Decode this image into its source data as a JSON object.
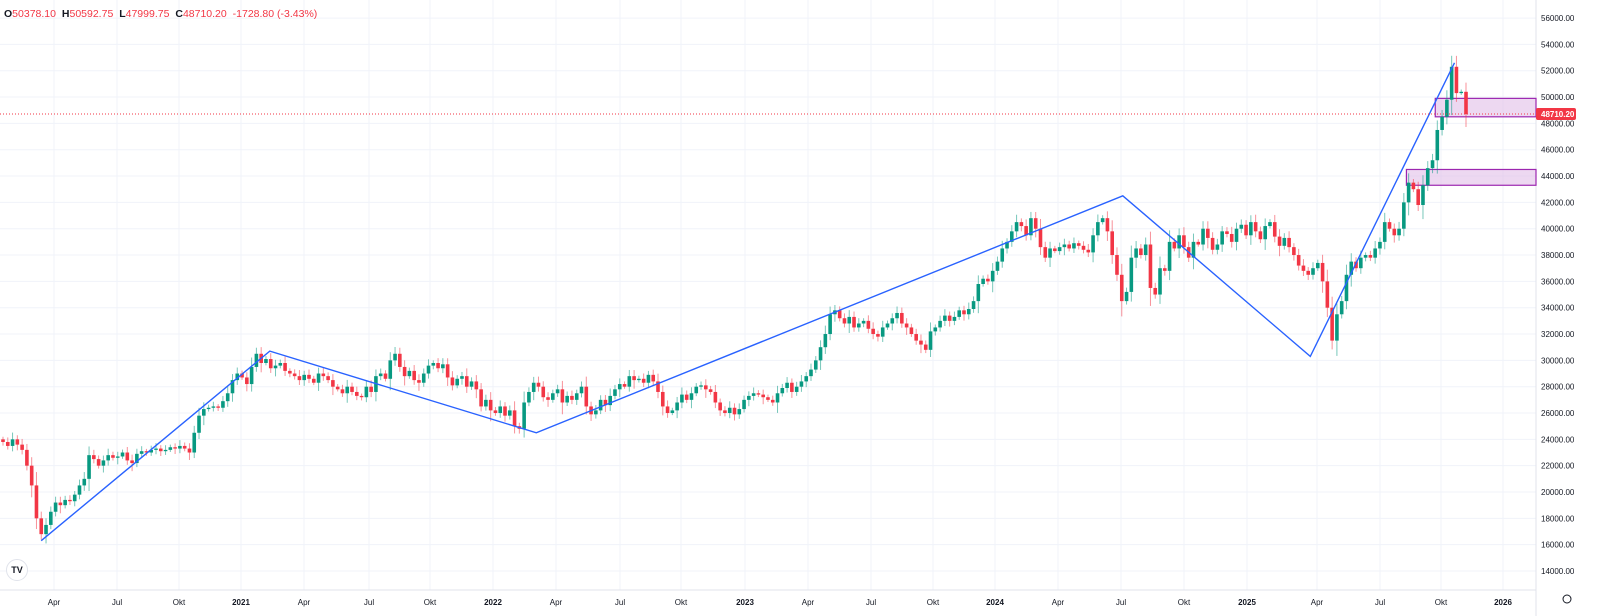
{
  "legend": {
    "o_label": "O",
    "open": "50378.10",
    "h_label": "H",
    "high": "50592.75",
    "l_label": "L",
    "low": "47999.75",
    "c_label": "C",
    "close": "48710.20",
    "change": "-1728.80 (-3.43%)"
  },
  "logo": "TV",
  "colors": {
    "up": "#089981",
    "down": "#f23645",
    "zigzag": "#2962ff",
    "zone_fill": "#e1bee7",
    "zone_border": "#9c27b0",
    "grid": "#f0f3fa",
    "price_line": "#f23645"
  },
  "chart_data": {
    "type": "candlestick",
    "interval": "weekly",
    "grid": true,
    "ylim": [
      14000,
      56000
    ],
    "y_ticks": [
      "56000.00",
      "54000.00",
      "52000.00",
      "50000.00",
      "48000.00",
      "46000.00",
      "44000.00",
      "42000.00",
      "40000.00",
      "38000.00",
      "36000.00",
      "34000.00",
      "32000.00",
      "30000.00",
      "28000.00",
      "26000.00",
      "24000.00",
      "22000.00",
      "20000.00",
      "18000.00",
      "16000.00",
      "14000.00"
    ],
    "x_ticks": [
      "Apr",
      "Jul",
      "Okt",
      "2021",
      "Apr",
      "Jul",
      "Okt",
      "2022",
      "Apr",
      "Jul",
      "Okt",
      "2023",
      "Apr",
      "Jul",
      "Okt",
      "2024",
      "Apr",
      "Jul",
      "Okt",
      "2025",
      "Apr",
      "Jul",
      "Okt",
      "2026"
    ],
    "last_price": "48710.20",
    "weekly_closes": [
      23.8,
      23.5,
      24.0,
      23.6,
      23.2,
      22.0,
      20.5,
      18.0,
      16.8,
      17.5,
      18.5,
      19.2,
      19.0,
      19.4,
      19.3,
      19.8,
      20.5,
      21.0,
      22.8,
      22.5,
      22.0,
      22.4,
      22.8,
      22.6,
      22.7,
      23.0,
      22.4,
      22.2,
      22.9,
      23.1,
      23.0,
      23.2,
      23.3,
      23.1,
      23.2,
      23.4,
      23.3,
      23.5,
      23.3,
      23.0,
      24.5,
      25.8,
      26.3,
      26.4,
      26.5,
      26.4,
      26.9,
      27.5,
      28.5,
      29.0,
      28.7,
      28.2,
      29.5,
      30.5,
      29.8,
      30.1,
      29.4,
      29.6,
      29.8,
      29.2,
      29.0,
      28.8,
      28.5,
      28.9,
      28.6,
      28.3,
      29.0,
      28.8,
      28.5,
      28.0,
      27.8,
      27.5,
      28.0,
      27.6,
      27.3,
      27.2,
      28.0,
      27.6,
      28.8,
      29.0,
      28.6,
      30.0,
      30.5,
      29.5,
      28.8,
      29.2,
      28.5,
      28.3,
      29.0,
      29.6,
      29.8,
      29.4,
      29.7,
      28.7,
      28.1,
      28.6,
      28.8,
      28.0,
      28.4,
      27.8,
      26.5,
      27.0,
      26.2,
      26.0,
      26.5,
      25.8,
      26.2,
      25.0,
      24.8,
      26.8,
      27.6,
      28.3,
      28.0,
      27.2,
      27.0,
      27.5,
      27.8,
      26.8,
      27.3,
      27.0,
      27.5,
      28.0,
      26.5,
      25.9,
      26.2,
      27.0,
      26.6,
      27.3,
      27.8,
      28.2,
      28.0,
      28.8,
      28.5,
      28.6,
      28.3,
      28.9,
      28.4,
      27.6,
      26.5,
      26.0,
      26.2,
      26.8,
      27.4,
      27.0,
      27.5,
      28.0,
      28.1,
      27.8,
      27.6,
      26.8,
      26.2,
      26.0,
      26.4,
      25.9,
      26.3,
      27.0,
      27.3,
      27.5,
      27.4,
      27.2,
      27.0,
      26.8,
      27.5,
      27.9,
      28.3,
      27.6,
      28.0,
      28.4,
      28.8,
      29.3,
      30.0,
      31.0,
      32.0,
      33.5,
      33.8,
      33.2,
      32.8,
      33.3,
      32.5,
      32.8,
      33.0,
      32.4,
      32.0,
      31.8,
      32.5,
      32.8,
      33.2,
      33.6,
      32.8,
      32.5,
      32.0,
      31.5,
      31.2,
      30.8,
      32.2,
      32.5,
      33.0,
      33.4,
      33.0,
      33.3,
      33.8,
      33.5,
      33.9,
      34.5,
      35.8,
      36.2,
      36.0,
      36.8,
      37.5,
      38.5,
      39.0,
      39.8,
      40.5,
      40.2,
      39.5,
      40.8,
      40.0,
      38.6,
      37.8,
      38.5,
      38.3,
      38.6,
      38.8,
      38.5,
      38.9,
      38.7,
      38.4,
      38.2,
      39.5,
      40.5,
      40.8,
      39.8,
      38.0,
      36.5,
      34.5,
      35.2,
      37.8,
      38.5,
      38.0,
      38.8,
      35.5,
      35.0,
      37.0,
      36.8,
      39.0,
      38.5,
      39.5,
      38.6,
      37.8,
      39.0,
      38.8,
      40.0,
      39.3,
      38.4,
      38.8,
      39.8,
      39.6,
      39.0,
      40.0,
      40.3,
      39.5,
      40.5,
      39.8,
      39.2,
      40.2,
      40.5,
      39.4,
      38.7,
      39.3,
      38.6,
      38.0,
      37.2,
      36.8,
      36.5,
      37.0,
      37.4,
      36.0,
      34.0,
      31.5,
      33.5,
      34.5,
      36.5,
      37.5,
      37.0,
      37.8,
      38.0,
      37.8,
      38.5,
      39.0,
      40.5,
      40.0,
      39.5,
      40.0,
      42.0,
      43.5,
      43.0,
      41.8,
      43.3,
      44.6,
      45.2,
      47.5,
      48.5,
      49.8,
      52.3,
      50.3,
      50.4,
      48.7
    ],
    "weekly_closes_unit": "thousands",
    "zigzag": [
      {
        "date": "2020-03-16",
        "price": 16300
      },
      {
        "date": "2021-02-12",
        "price": 30700
      },
      {
        "date": "2022-03-07",
        "price": 24500
      },
      {
        "date": "2024-07-08",
        "price": 42500
      },
      {
        "date": "2025-04-07",
        "price": 30300
      },
      {
        "date": "2025-11-03",
        "price": 52600
      }
    ],
    "zones": [
      {
        "from": "2025-10-06",
        "top": 49900,
        "bottom": 48500
      },
      {
        "from": "2025-08-25",
        "top": 44500,
        "bottom": 43300
      }
    ]
  }
}
